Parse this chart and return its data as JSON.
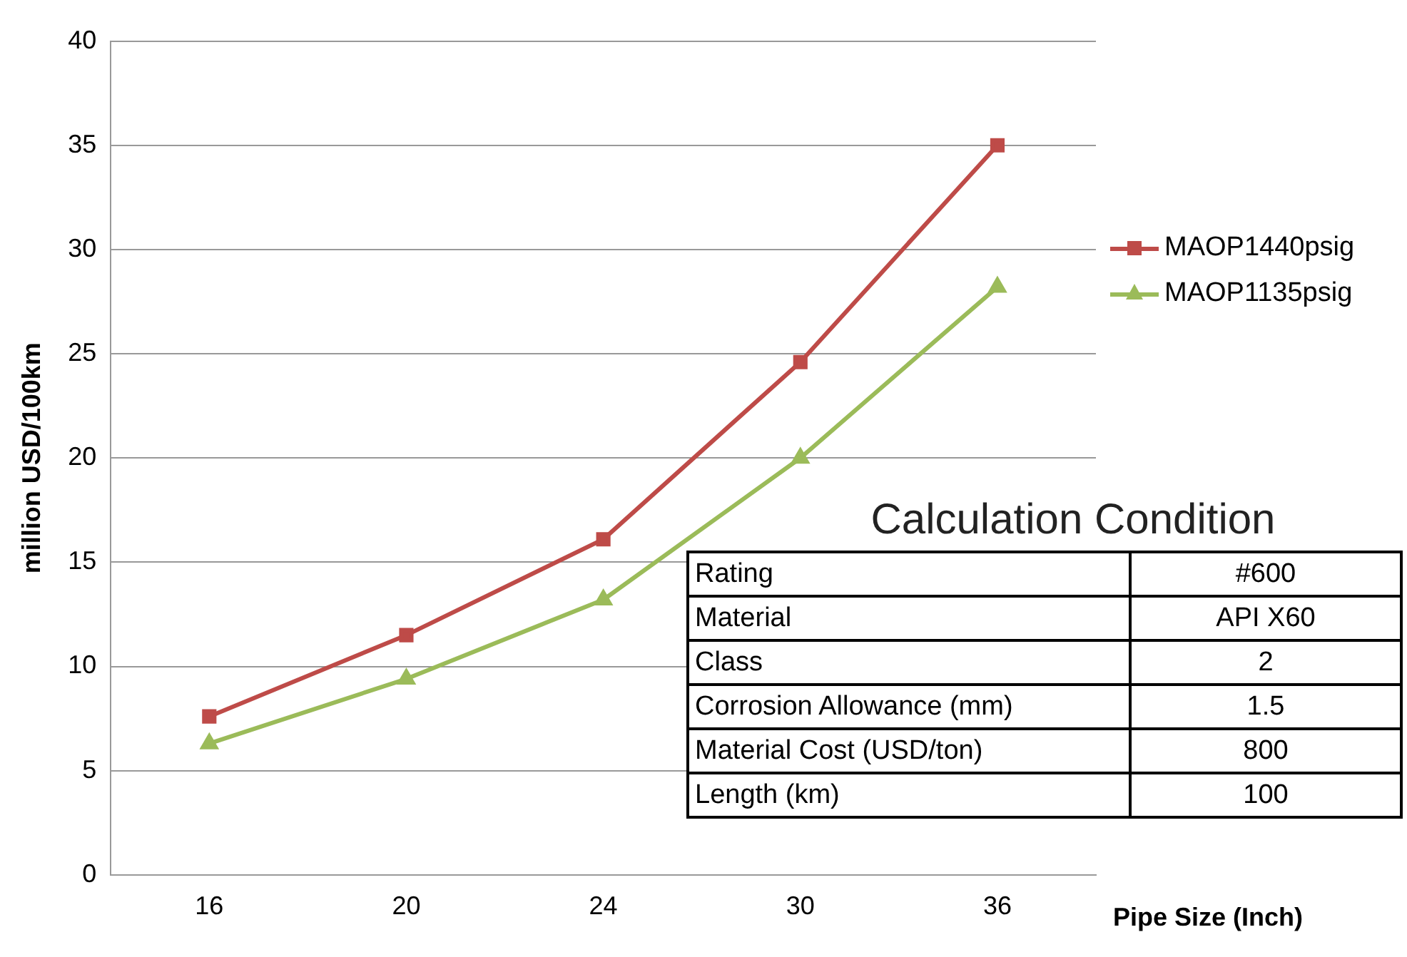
{
  "chart_data": {
    "type": "line",
    "xlabel": "Pipe Size (Inch)",
    "ylabel": "million USD/100km",
    "categories": [
      "16",
      "20",
      "24",
      "30",
      "36"
    ],
    "series": [
      {
        "name": "MAOP1440psig",
        "color": "#be4b48",
        "marker": "square",
        "values": [
          7.6,
          11.5,
          16.1,
          24.6,
          35.0
        ]
      },
      {
        "name": "MAOP1135psig",
        "color": "#9bbb59",
        "marker": "triangle",
        "values": [
          6.3,
          9.4,
          13.2,
          20.0,
          28.2
        ]
      }
    ],
    "ylim": [
      0,
      40
    ],
    "yticks": [
      0,
      5,
      10,
      15,
      20,
      25,
      30,
      35,
      40
    ],
    "grid": "y",
    "legend": "right",
    "annotations": [
      "Calculation Condition",
      "Rating",
      "#600",
      "Material",
      "API X60",
      "Class",
      "2",
      "Corrosion Allowance (mm)",
      "1.5",
      "Material Cost (USD/ton)",
      "800",
      "Length (km)",
      "100"
    ]
  }
}
